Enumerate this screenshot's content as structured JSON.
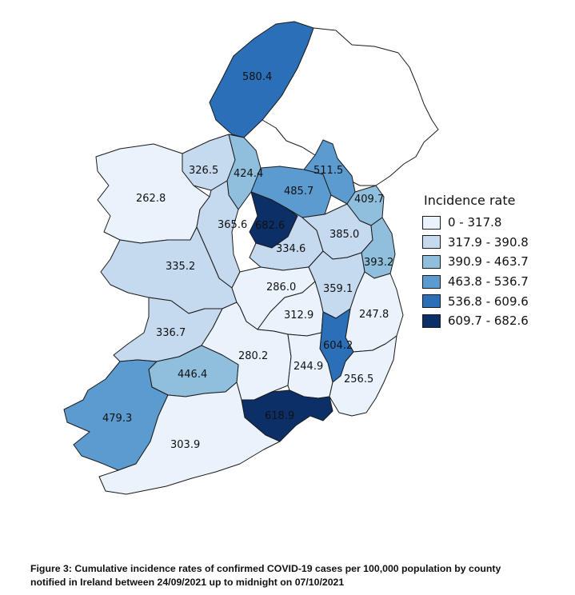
{
  "legend": {
    "title": "Incidence rate",
    "classes": [
      {
        "label": "0 - 317.8",
        "color": "#eaf3fb"
      },
      {
        "label": "317.9 - 390.8",
        "color": "#c5d9ef"
      },
      {
        "label": "390.9 - 463.7",
        "color": "#90bfdd"
      },
      {
        "label": "463.8 - 536.7",
        "color": "#5b9bd0"
      },
      {
        "label": "536.8 - 609.6",
        "color": "#2b6fb8"
      },
      {
        "label": "609.7 - 682.6",
        "color": "#0c2f68"
      }
    ]
  },
  "county_values": {
    "donegal": "580.4",
    "sligo": "326.5",
    "leitrim": "424.4",
    "cavan": "485.7",
    "monaghan": "511.5",
    "louth": "409.7",
    "mayo": "262.8",
    "roscommon": "365.6",
    "longford": "682.6",
    "westmeath": "334.6",
    "meath": "385.0",
    "dublin": "393.2",
    "galway": "335.2",
    "offaly": "286.0",
    "kildare": "359.1",
    "wicklow": "247.8",
    "laois": "312.9",
    "clare": "336.7",
    "carlow": "604.2",
    "tipperary": "280.2",
    "kilkenny": "244.9",
    "limerick": "446.4",
    "wexford": "256.5",
    "waterford": "618.9",
    "kerry": "479.3",
    "cork": "303.9"
  },
  "caption": {
    "line1": "Figure 3: Cumulative incidence rates of confirmed COVID-19 cases per 100,000 population by county",
    "line2": "notified in Ireland between 24/09/2021 up to midnight on 07/10/2021"
  }
}
